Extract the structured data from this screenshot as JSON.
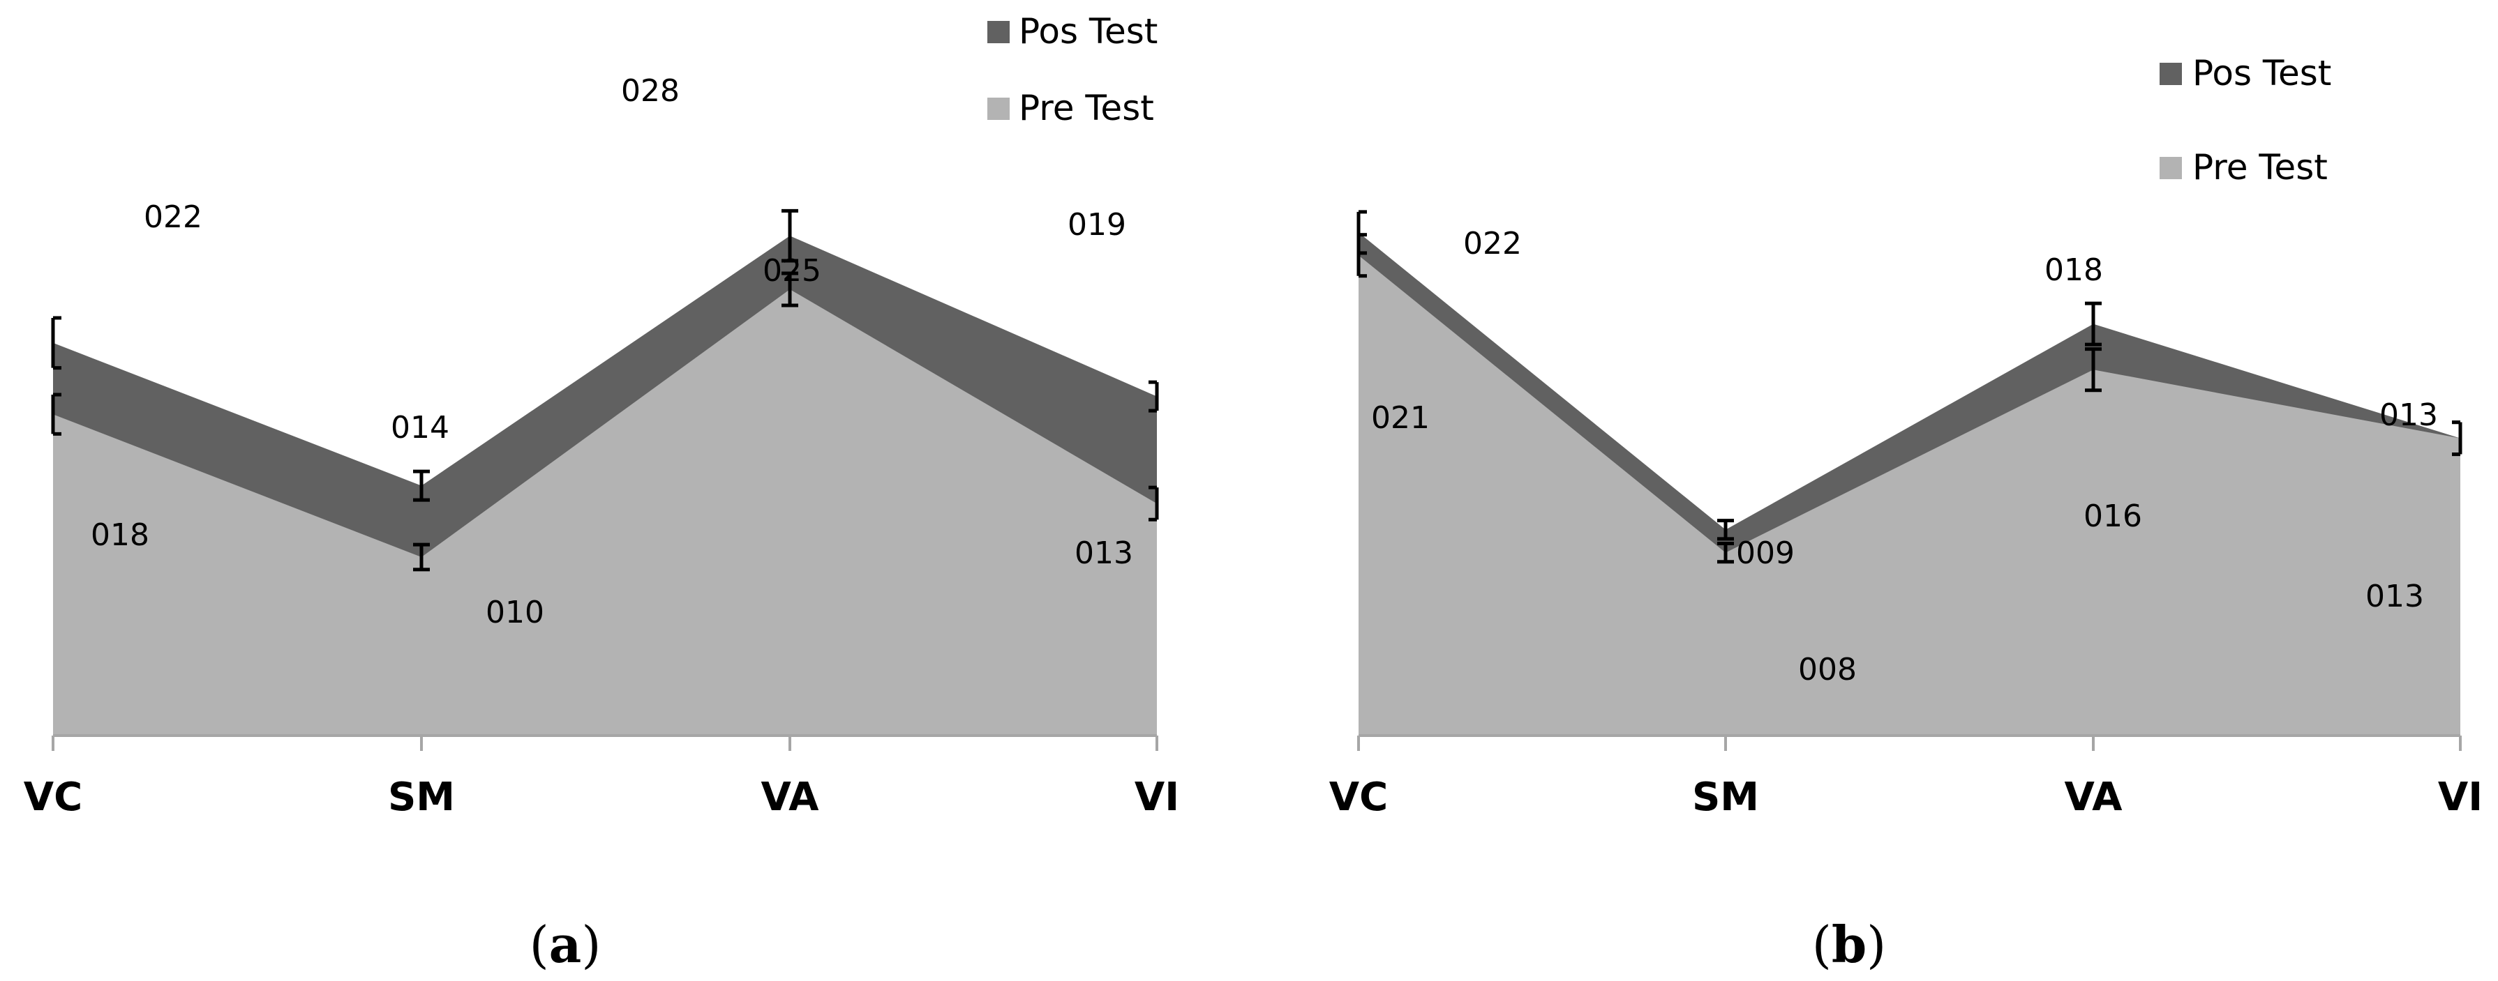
{
  "chart_data": [
    {
      "type": "area",
      "panel_label": "a",
      "categories": [
        "VC",
        "SM",
        "VA",
        "VI"
      ],
      "series": [
        {
          "name": "Pre Test",
          "color": "#b3b3b3",
          "values": [
            0.18,
            0.1,
            0.25,
            0.13
          ],
          "labels": [
            "018",
            "010",
            "025",
            "013"
          ],
          "error": [
            0.011,
            0.007,
            0.009,
            0.009
          ]
        },
        {
          "name": "Pos Test",
          "color": "#616161",
          "values": [
            0.22,
            0.14,
            0.28,
            0.19
          ],
          "labels": [
            "022",
            "014",
            "028",
            "019"
          ],
          "error": [
            0.014,
            0.008,
            0.014,
            0.008
          ]
        }
      ],
      "ylim": [
        0,
        0.3
      ],
      "grid": false,
      "legend": "top-right"
    },
    {
      "type": "area",
      "panel_label": "b",
      "categories": [
        "VC",
        "SM",
        "VA",
        "VI"
      ],
      "series": [
        {
          "name": "Pre Test",
          "color": "#b3b3b3",
          "values": [
            0.21,
            0.08,
            0.16,
            0.13
          ],
          "labels": [
            "021",
            "008",
            "016",
            "013"
          ],
          "error": [
            0.009,
            0.004,
            0.009,
            0.007
          ]
        },
        {
          "name": "Pos Test",
          "color": "#616161",
          "values": [
            0.22,
            0.09,
            0.18,
            0.13
          ],
          "labels": [
            "022",
            "009",
            "018",
            "013"
          ],
          "error": [
            0.009,
            0.004,
            0.009,
            0.007
          ]
        }
      ],
      "ylim": [
        0,
        0.225
      ],
      "grid": false,
      "legend": "top-right"
    }
  ],
  "captions": [
    {
      "open": "(",
      "letter": "a",
      "close": ")"
    },
    {
      "open": "(",
      "letter": "b",
      "close": ")"
    }
  ]
}
